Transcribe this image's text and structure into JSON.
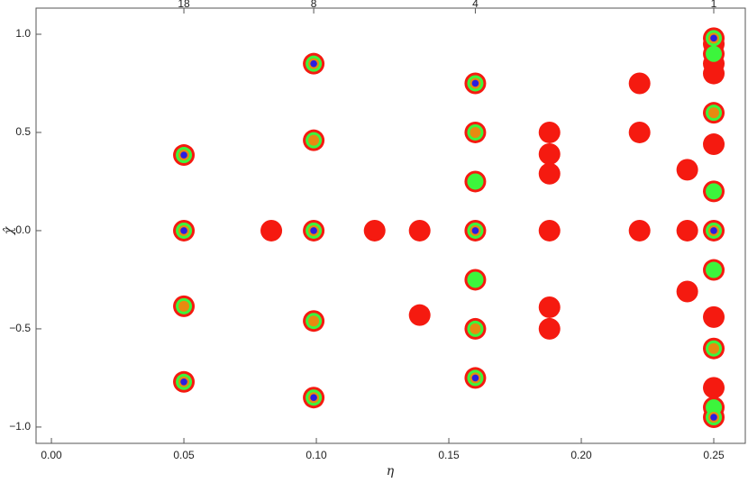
{
  "chart_data": {
    "type": "scatter",
    "x_label": "η",
    "y_label": "χ̂",
    "xlim": [
      -0.0058,
      0.2619
    ],
    "ylim": [
      -1.083,
      1.133
    ],
    "xticks": [
      {
        "value": 0,
        "label": "0.00"
      },
      {
        "value": 0.05,
        "label": "0.05"
      },
      {
        "value": 0.1,
        "label": "0.10"
      },
      {
        "value": 0.15,
        "label": "0.15"
      },
      {
        "value": 0.2,
        "label": "0.20"
      },
      {
        "value": 0.25,
        "label": "0.25"
      }
    ],
    "x2ticks": [
      {
        "value": 0.05,
        "label": "18"
      },
      {
        "value": 0.099,
        "label": "8"
      },
      {
        "value": 0.16,
        "label": "4"
      },
      {
        "value": 0.25,
        "label": "1"
      }
    ],
    "yticks": [
      {
        "value": -1,
        "label": "−1.0"
      },
      {
        "value": -0.5,
        "label": "−0.5"
      },
      {
        "value": 0,
        "label": "0.0"
      },
      {
        "value": 0.5,
        "label": "0.5"
      },
      {
        "value": 1,
        "label": "1.0"
      }
    ],
    "series": [
      {
        "color": "#f51a10",
        "x": [
          0.05,
          0.05,
          0.05,
          0.05,
          0.083,
          0.099,
          0.099,
          0.099,
          0.099,
          0.099,
          0.122,
          0.139,
          0.139,
          0.16,
          0.16,
          0.16,
          0.16,
          0.16,
          0.16,
          0.16,
          0.188,
          0.188,
          0.188,
          0.188,
          0.188,
          0.188,
          0.222,
          0.222,
          0.222,
          0.24,
          0.24,
          0.24,
          0.25,
          0.25,
          0.25,
          0.25,
          0.25,
          0.25,
          0.25,
          0.25,
          0.25,
          0.25,
          0.25,
          0.25,
          0.25,
          0.25,
          0.25
        ],
        "values": [
          0.385,
          0,
          -0.385,
          -0.77,
          0,
          0.85,
          0.46,
          0,
          -0.46,
          -0.85,
          0,
          0,
          -0.43,
          0.75,
          0.5,
          0.25,
          0,
          -0.25,
          -0.5,
          -0.75,
          0.5,
          0.39,
          0.29,
          0,
          -0.39,
          -0.5,
          0.75,
          0.5,
          0,
          0.31,
          0,
          -0.31,
          0.98,
          0.95,
          0.9,
          0.85,
          0.8,
          0.6,
          0.44,
          0.2,
          0,
          -0.2,
          -0.44,
          -0.6,
          -0.8,
          -0.9,
          -0.95
        ]
      },
      {
        "color": "#3cf53c",
        "x": [
          0.05,
          0.05,
          0.05,
          0.05,
          0.099,
          0.099,
          0.099,
          0.099,
          0.099,
          0.16,
          0.16,
          0.16,
          0.16,
          0.16,
          0.16,
          0.16,
          0.25,
          0.25,
          0.25,
          0.25,
          0.25,
          0.25,
          0.25,
          0.25,
          0.25
        ],
        "values": [
          0.385,
          0,
          -0.385,
          -0.77,
          0.85,
          0.46,
          0,
          -0.46,
          -0.85,
          0.75,
          0.5,
          0.25,
          0,
          -0.25,
          -0.5,
          -0.75,
          0.98,
          0.9,
          0.6,
          0.2,
          0,
          -0.2,
          -0.6,
          -0.9,
          -0.95
        ]
      },
      {
        "color": "#e88a10",
        "x": [
          0.05,
          0.05,
          0.05,
          0.05,
          0.099,
          0.099,
          0.099,
          0.099,
          0.099,
          0.16,
          0.16,
          0.16,
          0.16,
          0.16,
          0.25,
          0.25,
          0.25,
          0.25,
          0.25
        ],
        "values": [
          0.385,
          0,
          -0.385,
          -0.77,
          0.85,
          0.46,
          0,
          -0.46,
          -0.85,
          0.75,
          0.5,
          0,
          -0.5,
          -0.75,
          0.98,
          0.6,
          0,
          -0.6,
          -0.95
        ]
      },
      {
        "color": "#2a1ee0",
        "x": [
          0.05,
          0.05,
          0.05,
          0.099,
          0.099,
          0.099,
          0.16,
          0.16,
          0.16,
          0.25,
          0.25,
          0.25
        ],
        "values": [
          0.385,
          0,
          -0.77,
          0.85,
          0,
          -0.85,
          0.75,
          0,
          -0.75,
          0.98,
          0,
          -0.95
        ]
      }
    ]
  }
}
